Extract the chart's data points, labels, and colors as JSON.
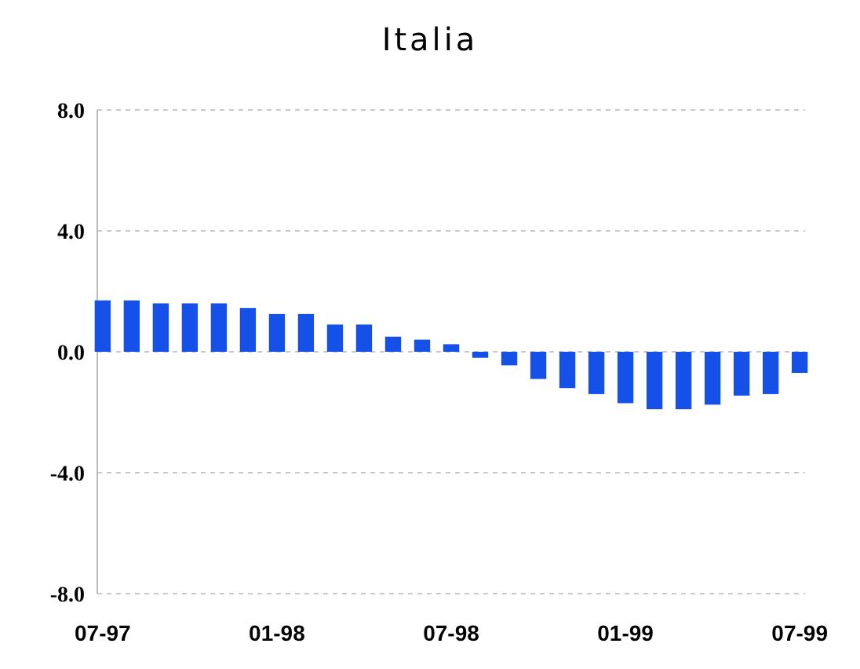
{
  "chart_data": {
    "type": "bar",
    "title": "Italia",
    "categories": [
      "07-97",
      null,
      null,
      null,
      null,
      null,
      "01-98",
      null,
      null,
      null,
      null,
      null,
      "07-98",
      null,
      null,
      null,
      null,
      null,
      "01-99",
      null,
      null,
      null,
      null,
      null,
      "07-99"
    ],
    "values": [
      1.7,
      1.7,
      1.6,
      1.6,
      1.6,
      1.45,
      1.25,
      1.25,
      0.9,
      0.9,
      0.5,
      0.4,
      0.25,
      -0.2,
      -0.45,
      -0.9,
      -1.2,
      -1.4,
      -1.7,
      -1.9,
      -1.9,
      -1.75,
      -1.45,
      -1.4,
      -0.7
    ],
    "color": "#1550e8",
    "ylim": [
      -8,
      8
    ],
    "yticks": [
      {
        "value": -8,
        "label": "-8.0"
      },
      {
        "value": -4,
        "label": "-4.0"
      },
      {
        "value": 0,
        "label": "0.0"
      },
      {
        "value": 4,
        "label": "4.0"
      },
      {
        "value": 8,
        "label": "8.0"
      }
    ],
    "grid": "y"
  }
}
